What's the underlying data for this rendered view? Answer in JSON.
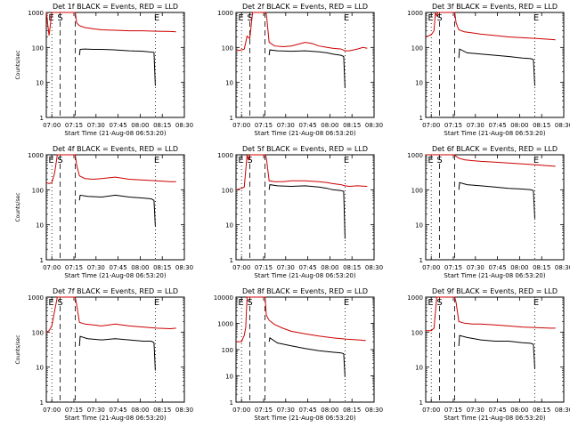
{
  "chart_data": [
    {
      "type": "line",
      "title": "Det 1f BLACK = Events, RED = LLD",
      "ylabel": "Counts/sec",
      "xlabel": "Start Time (21-Aug-08 06:53:20)",
      "xticks": [
        "07:00",
        "07:15",
        "07:30",
        "07:45",
        "08:00",
        "08:15",
        "08:30"
      ],
      "yticks": [
        "1",
        "10",
        "100",
        "1000"
      ],
      "xlim": [
        0,
        100
      ],
      "ylim": [
        1,
        1000
      ],
      "yscale": "log",
      "markers": [
        "E",
        "S",
        "E"
      ],
      "dashed_lines": [
        10,
        21
      ],
      "dotted_lines": [
        4,
        79
      ],
      "series": [
        {
          "color": "#cc0000",
          "x": [
            0,
            2,
            4,
            6,
            8,
            10,
            12,
            14,
            16,
            18,
            20,
            21,
            22,
            24,
            28,
            34,
            40,
            50,
            60,
            70,
            80,
            90,
            94
          ],
          "values": [
            1000,
            220,
            1000,
            1000,
            1000,
            1000,
            1000,
            1000,
            1000,
            1000,
            1000,
            1000,
            500,
            420,
            370,
            340,
            320,
            310,
            300,
            300,
            290,
            285,
            280
          ]
        },
        {
          "color": "#000000",
          "x": [
            24,
            24.5,
            28,
            34,
            40,
            50,
            60,
            70,
            78,
            79
          ],
          "values": [
            60,
            88,
            90,
            88,
            88,
            85,
            80,
            78,
            72,
            8
          ]
        }
      ]
    },
    {
      "type": "line",
      "title": "Det 2f BLACK = Events, RED = LLD",
      "ylabel": "",
      "xlabel": "Start Time (21-Aug-08 06:53:20)",
      "xticks": [
        "07:00",
        "07:15",
        "07:30",
        "07:45",
        "08:00",
        "08:15",
        "08:30"
      ],
      "yticks": [
        "1",
        "10",
        "100",
        "1000"
      ],
      "xlim": [
        0,
        100
      ],
      "ylim": [
        1,
        1000
      ],
      "yscale": "log",
      "markers": [
        "E",
        "S",
        "E"
      ],
      "dashed_lines": [
        10,
        21
      ],
      "dotted_lines": [
        4,
        79
      ],
      "series": [
        {
          "color": "#cc0000",
          "x": [
            0,
            4,
            6,
            8,
            10,
            12,
            14,
            16,
            18,
            20,
            21,
            22,
            24,
            28,
            34,
            40,
            50,
            55,
            60,
            66,
            70,
            76,
            79,
            82,
            85,
            88,
            92,
            95
          ],
          "values": [
            80,
            85,
            90,
            210,
            180,
            1000,
            1000,
            1000,
            1000,
            1000,
            1000,
            900,
            140,
            110,
            105,
            110,
            140,
            130,
            110,
            100,
            95,
            90,
            80,
            80,
            85,
            90,
            100,
            95
          ]
        },
        {
          "color": "#000000",
          "x": [
            24,
            24.5,
            30,
            40,
            50,
            60,
            66,
            70,
            76,
            78,
            79
          ],
          "values": [
            60,
            85,
            80,
            78,
            80,
            75,
            70,
            65,
            60,
            55,
            7
          ]
        }
      ]
    },
    {
      "type": "line",
      "title": "Det 3f BLACK = Events, RED = LLD",
      "ylabel": "",
      "xlabel": "Start Time (21-Aug-08 06:53:20)",
      "xticks": [
        "07:00",
        "07:15",
        "07:30",
        "07:45",
        "08:00",
        "08:15",
        "08:30"
      ],
      "yticks": [
        "1",
        "10",
        "100",
        "1000"
      ],
      "xlim": [
        0,
        100
      ],
      "ylim": [
        1,
        1000
      ],
      "yscale": "log",
      "markers": [
        "E",
        "S",
        "E"
      ],
      "dashed_lines": [
        10,
        21
      ],
      "dotted_lines": [
        4,
        79
      ],
      "series": [
        {
          "color": "#cc0000",
          "x": [
            0,
            4,
            6,
            7,
            8,
            9,
            10,
            12,
            14,
            16,
            18,
            20,
            21,
            22,
            24,
            28,
            34,
            40,
            50,
            60,
            70,
            80,
            90,
            94
          ],
          "values": [
            200,
            230,
            300,
            1000,
            800,
            1000,
            1000,
            1000,
            1000,
            1000,
            1000,
            1000,
            1000,
            500,
            320,
            280,
            260,
            240,
            220,
            200,
            190,
            180,
            170,
            165
          ]
        },
        {
          "color": "#000000",
          "x": [
            24,
            24.5,
            30,
            40,
            50,
            60,
            70,
            76,
            78,
            79
          ],
          "values": [
            50,
            90,
            70,
            65,
            60,
            55,
            50,
            48,
            45,
            8
          ]
        }
      ]
    },
    {
      "type": "line",
      "title": "Det 4f BLACK = Events, RED = LLD",
      "ylabel": "Counts/sec",
      "xlabel": "Start Time (21-Aug-08 06:53:20)",
      "xticks": [
        "07:00",
        "07:15",
        "07:30",
        "07:45",
        "08:00",
        "08:15",
        "08:30"
      ],
      "yticks": [
        "1",
        "10",
        "100",
        "1000"
      ],
      "xlim": [
        0,
        100
      ],
      "ylim": [
        1,
        1000
      ],
      "yscale": "log",
      "markers": [
        "E",
        "S",
        "E"
      ],
      "dashed_lines": [
        10,
        21
      ],
      "dotted_lines": [
        4,
        79
      ],
      "series": [
        {
          "color": "#cc0000",
          "x": [
            0,
            2,
            4,
            6,
            8,
            10,
            12,
            14,
            16,
            18,
            20,
            21,
            22,
            24,
            28,
            34,
            40,
            50,
            60,
            70,
            80,
            90,
            94
          ],
          "values": [
            160,
            150,
            160,
            300,
            1000,
            1000,
            1000,
            1000,
            1000,
            1000,
            1000,
            1000,
            500,
            250,
            210,
            200,
            210,
            230,
            200,
            190,
            180,
            170,
            170
          ]
        },
        {
          "color": "#000000",
          "x": [
            24,
            24.5,
            30,
            40,
            50,
            60,
            70,
            76,
            78,
            79
          ],
          "values": [
            50,
            70,
            65,
            62,
            70,
            62,
            58,
            55,
            50,
            9
          ]
        }
      ]
    },
    {
      "type": "line",
      "title": "Det 5f BLACK = Events, RED = LLD",
      "ylabel": "",
      "xlabel": "Start Time (21-Aug-08 06:53:20)",
      "xticks": [
        "07:00",
        "07:15",
        "07:30",
        "07:45",
        "08:00",
        "08:15",
        "08:30"
      ],
      "yticks": [
        "1",
        "10",
        "100",
        "1000"
      ],
      "xlim": [
        0,
        100
      ],
      "ylim": [
        1,
        1000
      ],
      "yscale": "log",
      "markers": [
        "E",
        "S",
        "E"
      ],
      "dashed_lines": [
        10,
        21
      ],
      "dotted_lines": [
        4,
        79
      ],
      "series": [
        {
          "color": "#cc0000",
          "x": [
            0,
            4,
            6,
            8,
            9,
            10,
            12,
            14,
            16,
            18,
            20,
            21,
            22,
            24,
            28,
            34,
            40,
            50,
            60,
            66,
            70,
            76,
            79,
            82,
            88,
            95
          ],
          "values": [
            100,
            110,
            120,
            1000,
            700,
            1000,
            1000,
            1000,
            1000,
            1000,
            1000,
            1000,
            800,
            180,
            170,
            170,
            180,
            180,
            170,
            160,
            150,
            140,
            130,
            125,
            130,
            125
          ]
        },
        {
          "color": "#000000",
          "x": [
            24,
            24.5,
            30,
            40,
            50,
            60,
            66,
            70,
            76,
            78,
            79
          ],
          "values": [
            100,
            140,
            130,
            125,
            130,
            120,
            110,
            100,
            95,
            90,
            4
          ]
        }
      ]
    },
    {
      "type": "line",
      "title": "Det 6f BLACK = Events, RED = LLD",
      "ylabel": "",
      "xlabel": "Start Time (21-Aug-08 06:53:20)",
      "xticks": [
        "07:00",
        "07:15",
        "07:30",
        "07:45",
        "08:00",
        "08:15",
        "08:30"
      ],
      "yticks": [
        "1",
        "10",
        "100",
        "1000"
      ],
      "xlim": [
        0,
        100
      ],
      "ylim": [
        1,
        1000
      ],
      "yscale": "log",
      "markers": [
        "E",
        "S",
        "E"
      ],
      "dashed_lines": [
        10,
        21
      ],
      "dotted_lines": [
        4,
        79
      ],
      "series": [
        {
          "color": "#cc0000",
          "x": [
            0,
            4,
            6,
            8,
            10,
            12,
            14,
            16,
            18,
            20,
            21,
            22,
            24,
            28,
            34,
            40,
            50,
            60,
            70,
            80,
            90,
            94
          ],
          "values": [
            1000,
            1000,
            1000,
            1000,
            1000,
            1000,
            1000,
            1000,
            1000,
            1000,
            1000,
            900,
            800,
            720,
            680,
            650,
            620,
            580,
            550,
            520,
            480,
            470
          ]
        },
        {
          "color": "#000000",
          "x": [
            24,
            24.5,
            30,
            40,
            50,
            60,
            70,
            76,
            78,
            79
          ],
          "values": [
            100,
            160,
            140,
            130,
            120,
            110,
            105,
            100,
            95,
            15
          ]
        }
      ]
    },
    {
      "type": "line",
      "title": "Det 7f BLACK = Events, RED = LLD",
      "ylabel": "Counts/sec",
      "xlabel": "Start Time (21-Aug-08 06:53:20)",
      "xticks": [
        "07:00",
        "07:15",
        "07:30",
        "07:45",
        "08:00",
        "08:15",
        "08:30"
      ],
      "yticks": [
        "1",
        "10",
        "100",
        "1000"
      ],
      "xlim": [
        0,
        100
      ],
      "ylim": [
        1,
        1000
      ],
      "yscale": "log",
      "markers": [
        "E",
        "S",
        "E"
      ],
      "dashed_lines": [
        10,
        21
      ],
      "dotted_lines": [
        4,
        79
      ],
      "series": [
        {
          "color": "#cc0000",
          "x": [
            0,
            2,
            4,
            6,
            8,
            10,
            12,
            14,
            16,
            18,
            20,
            21,
            22,
            24,
            28,
            34,
            40,
            50,
            60,
            70,
            80,
            90,
            94
          ],
          "values": [
            100,
            110,
            150,
            400,
            1000,
            1000,
            1000,
            1000,
            1000,
            1000,
            1000,
            1000,
            600,
            190,
            170,
            160,
            150,
            170,
            150,
            140,
            130,
            125,
            130
          ]
        },
        {
          "color": "#000000",
          "x": [
            24,
            24.5,
            30,
            40,
            50,
            60,
            70,
            76,
            78,
            79
          ],
          "values": [
            40,
            75,
            65,
            60,
            65,
            60,
            55,
            55,
            50,
            8
          ]
        }
      ]
    },
    {
      "type": "line",
      "title": "Det 8f BLACK = Events, RED = LLD",
      "ylabel": "",
      "xlabel": "Start Time (21-Aug-08 06:53:20)",
      "xticks": [
        "07:00",
        "07:15",
        "07:30",
        "07:45",
        "08:00",
        "08:15",
        "08:30"
      ],
      "yticks": [
        "1",
        "10",
        "100",
        "1000",
        "10000"
      ],
      "xlim": [
        0,
        100
      ],
      "ylim": [
        1,
        10000
      ],
      "yscale": "log",
      "markers": [
        "E",
        "S",
        "E"
      ],
      "dashed_lines": [
        10,
        21
      ],
      "dotted_lines": [
        4,
        79
      ],
      "series": [
        {
          "color": "#cc0000",
          "x": [
            0,
            4,
            6,
            7,
            8,
            10,
            12,
            14,
            16,
            18,
            20,
            21,
            22,
            24,
            28,
            34,
            40,
            50,
            60,
            70,
            80,
            90,
            94
          ],
          "values": [
            200,
            200,
            350,
            700,
            10000,
            10000,
            10000,
            10000,
            10000,
            10000,
            10000,
            10000,
            2000,
            1300,
            900,
            650,
            500,
            400,
            330,
            280,
            250,
            230,
            220
          ]
        },
        {
          "color": "#000000",
          "x": [
            24,
            24.5,
            30,
            40,
            50,
            60,
            70,
            76,
            78,
            79
          ],
          "values": [
            200,
            280,
            180,
            140,
            110,
            90,
            80,
            75,
            70,
            9
          ]
        }
      ]
    },
    {
      "type": "line",
      "title": "Det 9f BLACK = Events, RED = LLD",
      "ylabel": "",
      "xlabel": "Start Time (21-Aug-08 06:53:20)",
      "xticks": [
        "07:00",
        "07:15",
        "07:30",
        "07:45",
        "08:00",
        "08:15",
        "08:30"
      ],
      "yticks": [
        "1",
        "10",
        "100",
        "1000"
      ],
      "xlim": [
        0,
        100
      ],
      "ylim": [
        1,
        1000
      ],
      "yscale": "log",
      "markers": [
        "E",
        "S",
        "E"
      ],
      "dashed_lines": [
        10,
        21
      ],
      "dotted_lines": [
        4,
        79
      ],
      "series": [
        {
          "color": "#cc0000",
          "x": [
            0,
            4,
            6,
            8,
            10,
            12,
            14,
            16,
            18,
            20,
            21,
            22,
            24,
            28,
            34,
            40,
            50,
            60,
            70,
            80,
            90,
            94
          ],
          "values": [
            110,
            110,
            130,
            1000,
            1000,
            1000,
            1000,
            1000,
            1000,
            1000,
            1000,
            700,
            200,
            180,
            170,
            170,
            160,
            150,
            140,
            135,
            130,
            130
          ]
        },
        {
          "color": "#000000",
          "x": [
            24,
            24.5,
            30,
            40,
            50,
            60,
            70,
            76,
            78,
            79
          ],
          "values": [
            40,
            80,
            70,
            60,
            55,
            55,
            50,
            48,
            45,
            9
          ]
        }
      ]
    }
  ]
}
